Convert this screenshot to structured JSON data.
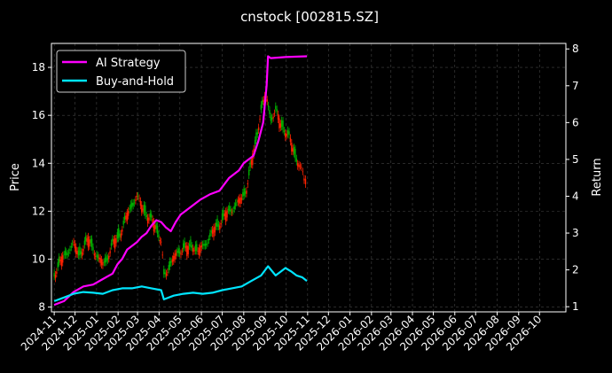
{
  "chart_data": {
    "type": "line",
    "title": "cnstock [002815.SZ]",
    "ylabel": "Price",
    "y2label": "Return",
    "ylim": [
      7.8,
      19.0
    ],
    "y2lim": [
      0.86,
      8.15
    ],
    "yticks": [
      8,
      10,
      12,
      14,
      16,
      18
    ],
    "y2ticks": [
      1,
      2,
      3,
      4,
      5,
      6,
      7,
      8
    ],
    "xlim": [
      "2024-10-28",
      "2026-11-08"
    ],
    "xtick_labels": [
      "2024-11",
      "2024-12",
      "2025-01",
      "2025-02",
      "2025-03",
      "2025-04",
      "2025-05",
      "2025-06",
      "2025-07",
      "2025-08",
      "2025-09",
      "2025-10",
      "2025-11",
      "2025-12",
      "2026-01",
      "2026-02",
      "2026-03",
      "2026-04",
      "2026-05",
      "2026-06",
      "2026-07",
      "2026-08",
      "2026-09",
      "2026-10"
    ],
    "grid": true,
    "legend_position": "top-left",
    "background": "#000000",
    "grid_color": "#444444",
    "up_color": "#ff2200",
    "down_color": "#00b000",
    "candles_price": {
      "name": "Price",
      "points": [
        [
          "2024-11-01",
          9.4
        ],
        [
          "2024-11-08",
          9.8
        ],
        [
          "2024-11-15",
          10.1
        ],
        [
          "2024-11-22",
          10.4
        ],
        [
          "2024-11-29",
          10.6
        ],
        [
          "2024-12-06",
          10.2
        ],
        [
          "2024-12-13",
          10.5
        ],
        [
          "2024-12-20",
          10.8
        ],
        [
          "2024-12-27",
          10.5
        ],
        [
          "2025-01-03",
          10.0
        ],
        [
          "2025-01-10",
          9.8
        ],
        [
          "2025-01-17",
          10.1
        ],
        [
          "2025-01-24",
          10.6
        ],
        [
          "2025-01-31",
          10.9
        ],
        [
          "2025-02-07",
          11.3
        ],
        [
          "2025-02-14",
          11.8
        ],
        [
          "2025-02-21",
          12.3
        ],
        [
          "2025-02-28",
          12.6
        ],
        [
          "2025-03-07",
          12.2
        ],
        [
          "2025-03-14",
          11.9
        ],
        [
          "2025-03-21",
          11.6
        ],
        [
          "2025-03-28",
          11.3
        ],
        [
          "2025-04-04",
          10.8
        ],
        [
          "2025-04-08",
          9.3
        ],
        [
          "2025-04-15",
          9.7
        ],
        [
          "2025-04-22",
          10.0
        ],
        [
          "2025-04-29",
          10.3
        ],
        [
          "2025-05-06",
          10.5
        ],
        [
          "2025-05-13",
          10.4
        ],
        [
          "2025-05-20",
          10.6
        ],
        [
          "2025-05-27",
          10.3
        ],
        [
          "2025-06-03",
          10.5
        ],
        [
          "2025-06-10",
          10.8
        ],
        [
          "2025-06-17",
          11.1
        ],
        [
          "2025-06-24",
          11.4
        ],
        [
          "2025-07-01",
          11.7
        ],
        [
          "2025-07-08",
          11.9
        ],
        [
          "2025-07-15",
          12.1
        ],
        [
          "2025-07-22",
          12.3
        ],
        [
          "2025-07-29",
          12.5
        ],
        [
          "2025-08-05",
          13.0
        ],
        [
          "2025-08-12",
          14.0
        ],
        [
          "2025-08-19",
          15.0
        ],
        [
          "2025-08-26",
          16.3
        ],
        [
          "2025-09-02",
          16.8
        ],
        [
          "2025-09-09",
          15.9
        ],
        [
          "2025-09-16",
          16.2
        ],
        [
          "2025-09-23",
          15.6
        ],
        [
          "2025-09-30",
          15.4
        ],
        [
          "2025-10-09",
          14.8
        ],
        [
          "2025-10-16",
          14.2
        ],
        [
          "2025-10-23",
          13.7
        ],
        [
          "2025-10-31",
          13.3
        ]
      ]
    },
    "series": [
      {
        "name": "AI Strategy",
        "color": "#ff00ff",
        "points": [
          [
            "2024-11-01",
            1.05
          ],
          [
            "2024-11-15",
            1.15
          ],
          [
            "2024-11-29",
            1.4
          ],
          [
            "2024-12-13",
            1.55
          ],
          [
            "2024-12-27",
            1.6
          ],
          [
            "2025-01-10",
            1.75
          ],
          [
            "2025-01-24",
            1.9
          ],
          [
            "2025-01-31",
            2.15
          ],
          [
            "2025-02-07",
            2.3
          ],
          [
            "2025-02-14",
            2.55
          ],
          [
            "2025-02-28",
            2.75
          ],
          [
            "2025-03-07",
            2.9
          ],
          [
            "2025-03-14",
            3.0
          ],
          [
            "2025-03-21",
            3.2
          ],
          [
            "2025-03-28",
            3.35
          ],
          [
            "2025-04-04",
            3.3
          ],
          [
            "2025-04-11",
            3.15
          ],
          [
            "2025-04-18",
            3.05
          ],
          [
            "2025-04-25",
            3.3
          ],
          [
            "2025-05-02",
            3.5
          ],
          [
            "2025-05-16",
            3.7
          ],
          [
            "2025-05-30",
            3.9
          ],
          [
            "2025-06-13",
            4.05
          ],
          [
            "2025-06-27",
            4.15
          ],
          [
            "2025-07-11",
            4.5
          ],
          [
            "2025-07-25",
            4.7
          ],
          [
            "2025-08-01",
            4.9
          ],
          [
            "2025-08-15",
            5.1
          ],
          [
            "2025-08-22",
            5.5
          ],
          [
            "2025-08-29",
            6.0
          ],
          [
            "2025-09-03",
            7.0
          ],
          [
            "2025-09-05",
            7.8
          ],
          [
            "2025-09-09",
            7.75
          ],
          [
            "2025-09-30",
            7.78
          ],
          [
            "2025-10-31",
            7.8
          ]
        ]
      },
      {
        "name": "Buy-and-Hold",
        "color": "#00e5ff",
        "points": [
          [
            "2024-11-01",
            1.15
          ],
          [
            "2024-11-15",
            1.25
          ],
          [
            "2024-11-29",
            1.35
          ],
          [
            "2024-12-13",
            1.4
          ],
          [
            "2024-12-27",
            1.38
          ],
          [
            "2025-01-10",
            1.35
          ],
          [
            "2025-01-24",
            1.45
          ],
          [
            "2025-02-07",
            1.5
          ],
          [
            "2025-02-21",
            1.5
          ],
          [
            "2025-03-07",
            1.55
          ],
          [
            "2025-03-21",
            1.5
          ],
          [
            "2025-04-04",
            1.45
          ],
          [
            "2025-04-08",
            1.2
          ],
          [
            "2025-04-22",
            1.3
          ],
          [
            "2025-05-06",
            1.35
          ],
          [
            "2025-05-20",
            1.38
          ],
          [
            "2025-06-03",
            1.35
          ],
          [
            "2025-06-17",
            1.38
          ],
          [
            "2025-07-01",
            1.45
          ],
          [
            "2025-07-15",
            1.5
          ],
          [
            "2025-07-29",
            1.55
          ],
          [
            "2025-08-12",
            1.7
          ],
          [
            "2025-08-26",
            1.85
          ],
          [
            "2025-09-05",
            2.1
          ],
          [
            "2025-09-16",
            1.85
          ],
          [
            "2025-09-23",
            1.95
          ],
          [
            "2025-09-30",
            2.05
          ],
          [
            "2025-10-09",
            1.95
          ],
          [
            "2025-10-16",
            1.85
          ],
          [
            "2025-10-24",
            1.8
          ],
          [
            "2025-10-31",
            1.7
          ]
        ]
      }
    ]
  }
}
